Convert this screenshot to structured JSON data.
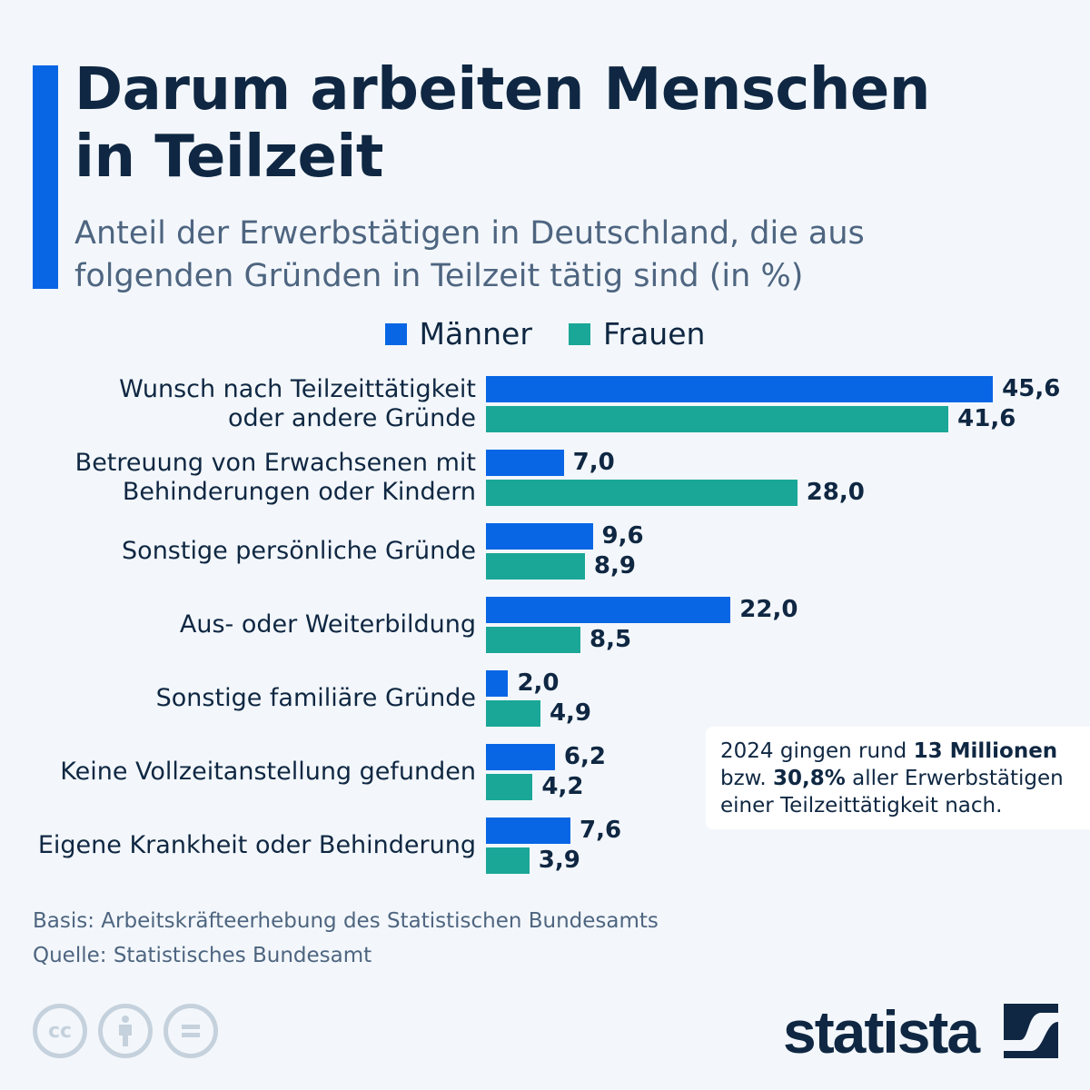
{
  "title": "Darum arbeiten Menschen in Teilzeit",
  "subtitle": "Anteil der Erwerbstätigen in Deutschland, die aus folgenden Gründen in Teilzeit tätig sind (in %)",
  "note": {
    "p1": "2024 gingen rund ",
    "b1": "13 Millionen",
    "p2": " bzw. ",
    "b2": "30,8%",
    "p3": " aller Erwerbstätigen einer Teilzeittätigkeit nach."
  },
  "footer": {
    "basis": "Basis: Arbeitskräfteerhebung des Statistischen Bundesamts",
    "source": "Quelle: Statistisches Bundesamt",
    "logo": "statista",
    "cc_icons": [
      "cc-icon",
      "attribution-icon",
      "no-derivatives-icon"
    ]
  },
  "chart_data": {
    "type": "bar",
    "orientation": "horizontal",
    "categories": [
      "Wunsch nach Teilzeittätigkeit\noder andere Gründe",
      "Betreuung von Erwachsenen mit\nBehinderungen oder Kindern",
      "Sonstige persönliche Gründe",
      "Aus- oder Weiterbildung",
      "Sonstige familiäre Gründe",
      "Keine Vollzeitanstellung gefunden",
      "Eigene Krankheit oder Behinderung"
    ],
    "series": [
      {
        "name": "Männer",
        "color": "#0866e5",
        "values": [
          45.6,
          7.0,
          9.6,
          22.0,
          2.0,
          6.2,
          7.6
        ],
        "labels": [
          "45,6",
          "7,0",
          "9,6",
          "22,0",
          "2,0",
          "6,2",
          "7,6"
        ]
      },
      {
        "name": "Frauen",
        "color": "#1aa797",
        "values": [
          41.6,
          28.0,
          8.9,
          8.5,
          4.9,
          4.2,
          3.9
        ],
        "labels": [
          "41,6",
          "28,0",
          "8,9",
          "8,5",
          "4,9",
          "4,2",
          "3,9"
        ]
      }
    ],
    "legend": "top-center",
    "grid": false
  }
}
